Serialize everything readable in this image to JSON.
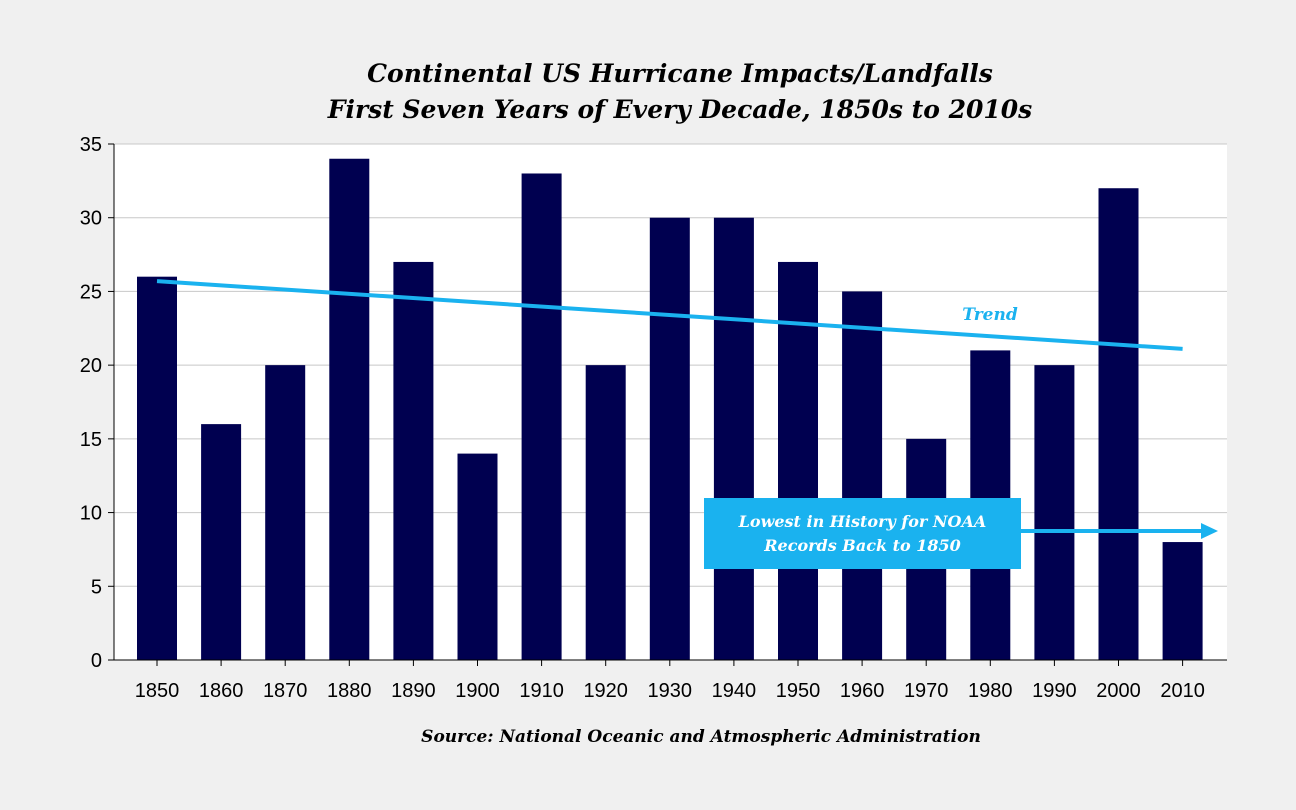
{
  "title_line1": "Continental US Hurricane Impacts/Landfalls",
  "title_line2": "First Seven Years of Every Decade, 1850s to 2010s",
  "source": "Source: National Oceanic and Atmospheric Administration",
  "callout": {
    "line1": "Lowest in History for NOAA",
    "line2": "Records Back to 1850"
  },
  "chart_data": {
    "type": "bar",
    "categories": [
      "1850",
      "1860",
      "1870",
      "1880",
      "1890",
      "1900",
      "1910",
      "1920",
      "1930",
      "1940",
      "1950",
      "1960",
      "1970",
      "1980",
      "1990",
      "2000",
      "2010"
    ],
    "values": [
      26,
      16,
      20,
      34,
      27,
      14,
      33,
      20,
      30,
      30,
      27,
      25,
      15,
      21,
      20,
      32,
      8
    ],
    "ylim": [
      0,
      35
    ],
    "yticks": [
      0,
      5,
      10,
      15,
      20,
      25,
      30,
      35
    ],
    "grid": true,
    "colors": {
      "bars": "#000050",
      "trend": "#1ab2ef",
      "grid": "#c8c8c8"
    },
    "trend": {
      "label": "Trend",
      "start_value": 25.7,
      "end_value": 21.1
    }
  }
}
